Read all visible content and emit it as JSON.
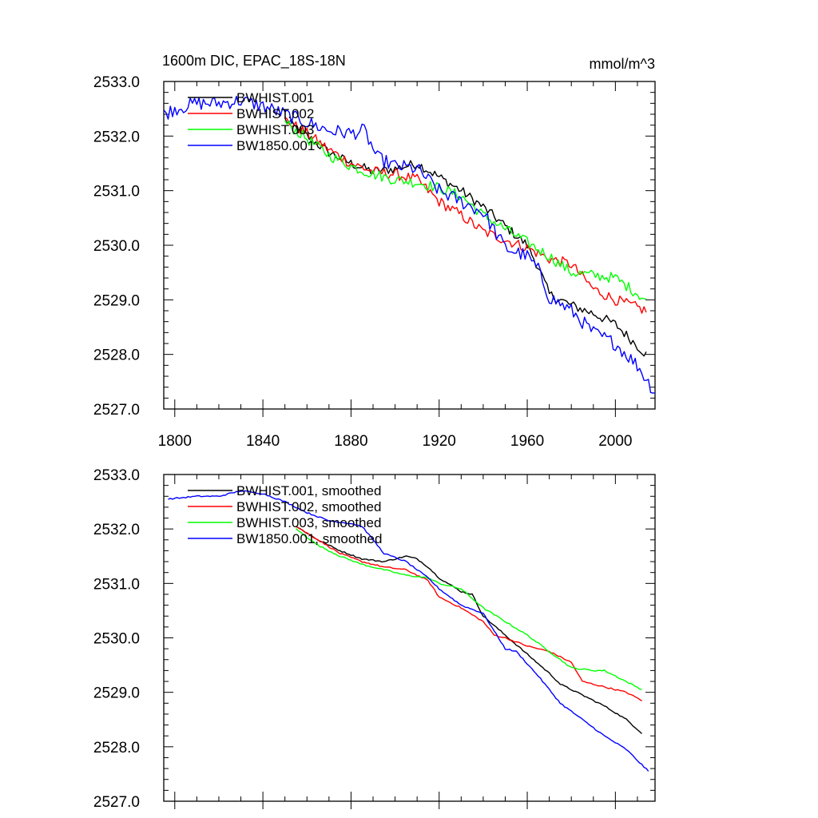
{
  "chart_data": [
    {
      "type": "line",
      "title": "1600m DIC, EPAC_18S-18N",
      "units": "mmol/m^3",
      "xlabel": "",
      "ylabel": "",
      "xlim": [
        1795,
        2018
      ],
      "ylim": [
        2527.0,
        2533.0
      ],
      "xticks": [
        1800,
        1840,
        1880,
        1920,
        1960,
        2000
      ],
      "yticks": [
        "2527.0",
        "2528.0",
        "2529.0",
        "2530.0",
        "2531.0",
        "2532.0",
        "2533.0"
      ],
      "legend_position": "top-left",
      "series": [
        {
          "name": "BWHIST.001",
          "color": "#000000",
          "x": [
            1850,
            1860,
            1870,
            1880,
            1890,
            1900,
            1910,
            1920,
            1930,
            1940,
            1950,
            1960,
            1965,
            1970,
            1980,
            1990,
            2000,
            2014
          ],
          "y": [
            2532.3,
            2532.0,
            2531.7,
            2531.5,
            2531.35,
            2531.4,
            2531.5,
            2531.25,
            2531.0,
            2530.7,
            2530.35,
            2530.0,
            2529.6,
            2529.1,
            2528.9,
            2528.75,
            2528.55,
            2528.0
          ]
        },
        {
          "name": "BWHIST.002",
          "color": "#ff0000",
          "x": [
            1850,
            1860,
            1870,
            1880,
            1890,
            1900,
            1910,
            1920,
            1930,
            1940,
            1950,
            1960,
            1970,
            1980,
            1990,
            2000,
            2014
          ],
          "y": [
            2532.3,
            2532.05,
            2531.75,
            2531.5,
            2531.35,
            2531.3,
            2531.2,
            2530.8,
            2530.55,
            2530.25,
            2530.1,
            2529.95,
            2529.75,
            2529.65,
            2529.2,
            2529.0,
            2528.8
          ]
        },
        {
          "name": "BWHIST.003",
          "color": "#00ff00",
          "x": [
            1850,
            1860,
            1870,
            1880,
            1890,
            1900,
            1910,
            1920,
            1930,
            1940,
            1950,
            1960,
            1970,
            1980,
            1990,
            2000,
            2014
          ],
          "y": [
            2532.25,
            2531.95,
            2531.65,
            2531.45,
            2531.3,
            2531.2,
            2531.15,
            2531.05,
            2530.9,
            2530.55,
            2530.3,
            2530.05,
            2529.8,
            2529.5,
            2529.45,
            2529.4,
            2529.0
          ]
        },
        {
          "name": "BW1850.001",
          "color": "#0000ff",
          "x": [
            1795,
            1800,
            1810,
            1820,
            1830,
            1840,
            1850,
            1860,
            1870,
            1880,
            1886,
            1892,
            1900,
            1910,
            1920,
            1930,
            1940,
            1950,
            1960,
            1965,
            1970,
            1980,
            1990,
            2000,
            2010,
            2018
          ],
          "y": [
            2532.4,
            2532.5,
            2532.6,
            2532.6,
            2532.65,
            2532.55,
            2532.4,
            2532.25,
            2532.1,
            2532.05,
            2532.1,
            2531.6,
            2531.45,
            2531.4,
            2531.0,
            2530.8,
            2530.6,
            2529.95,
            2529.8,
            2529.55,
            2529.05,
            2528.8,
            2528.4,
            2528.2,
            2527.8,
            2527.3
          ]
        }
      ]
    },
    {
      "type": "line",
      "title": "",
      "xlabel": "",
      "ylabel": "",
      "xlim": [
        1795,
        2018
      ],
      "ylim": [
        2527.0,
        2533.0
      ],
      "yticks": [
        "2527.0",
        "2528.0",
        "2529.0",
        "2530.0",
        "2531.0",
        "2532.0",
        "2533.0"
      ],
      "legend_position": "top-left",
      "series": [
        {
          "name": "BWHIST.001, smoothed",
          "color": "#000000",
          "x": [
            1855,
            1865,
            1875,
            1885,
            1895,
            1900,
            1905,
            1910,
            1915,
            1920,
            1930,
            1935,
            1940,
            1950,
            1960,
            1970,
            1975,
            1985,
            1995,
            2005,
            2012
          ],
          "y": [
            2532.05,
            2531.8,
            2531.6,
            2531.45,
            2531.4,
            2531.45,
            2531.5,
            2531.45,
            2531.3,
            2531.1,
            2530.85,
            2530.8,
            2530.4,
            2530.05,
            2529.7,
            2529.35,
            2529.15,
            2528.95,
            2528.75,
            2528.5,
            2528.25
          ]
        },
        {
          "name": "BWHIST.002, smoothed",
          "color": "#ff0000",
          "x": [
            1855,
            1865,
            1875,
            1885,
            1895,
            1905,
            1915,
            1920,
            1930,
            1940,
            1945,
            1950,
            1960,
            1970,
            1980,
            1985,
            1995,
            2005,
            2012
          ],
          "y": [
            2532.05,
            2531.8,
            2531.55,
            2531.4,
            2531.3,
            2531.25,
            2531.05,
            2530.75,
            2530.55,
            2530.3,
            2530.05,
            2530.0,
            2529.85,
            2529.75,
            2529.55,
            2529.2,
            2529.1,
            2529.0,
            2528.85
          ]
        },
        {
          "name": "BWHIST.003, smoothed",
          "color": "#00ff00",
          "x": [
            1855,
            1865,
            1875,
            1885,
            1895,
            1905,
            1915,
            1920,
            1930,
            1940,
            1950,
            1960,
            1970,
            1980,
            1990,
            1995,
            2000,
            2012
          ],
          "y": [
            2532.0,
            2531.7,
            2531.5,
            2531.35,
            2531.25,
            2531.15,
            2531.1,
            2531.0,
            2530.9,
            2530.55,
            2530.3,
            2530.05,
            2529.75,
            2529.45,
            2529.4,
            2529.4,
            2529.3,
            2529.05
          ]
        },
        {
          "name": "BW1850.001, smoothed",
          "color": "#0000ff",
          "x": [
            1797,
            1810,
            1820,
            1830,
            1840,
            1850,
            1860,
            1870,
            1880,
            1885,
            1890,
            1895,
            1905,
            1915,
            1920,
            1930,
            1940,
            1950,
            1955,
            1965,
            1975,
            1985,
            1995,
            2005,
            2015
          ],
          "y": [
            2532.55,
            2532.6,
            2532.6,
            2532.7,
            2532.65,
            2532.5,
            2532.3,
            2532.15,
            2532.1,
            2532.05,
            2531.8,
            2531.55,
            2531.4,
            2531.1,
            2530.9,
            2530.6,
            2530.45,
            2529.8,
            2529.75,
            2529.3,
            2528.8,
            2528.5,
            2528.2,
            2527.95,
            2527.55
          ]
        }
      ]
    }
  ]
}
